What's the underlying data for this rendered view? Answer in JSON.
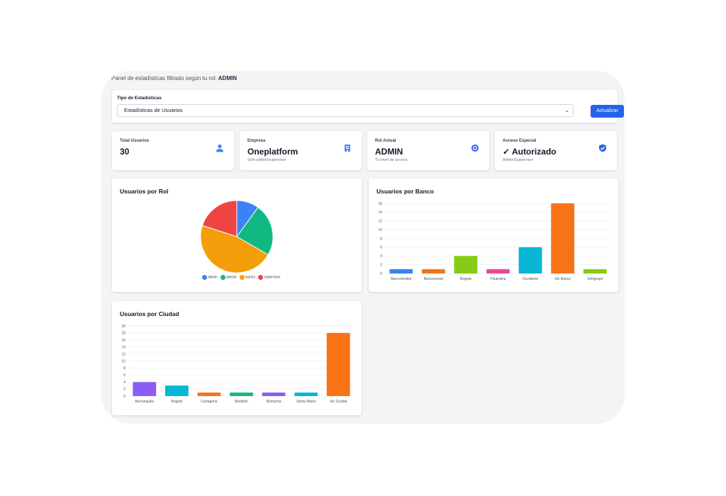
{
  "header": {
    "note_prefix": "Panel de estadísticas filtrado según tu rol:",
    "role": "ADMIN"
  },
  "filter": {
    "label": "Tipo de Estadísticas",
    "selected": "Estadísticas de Usuarios",
    "button": "Actualizar"
  },
  "stats": [
    {
      "title": "Total Usuarios",
      "value": "30",
      "sub": "",
      "icon": "user-icon"
    },
    {
      "title": "Empresa",
      "value": "Oneplatform",
      "sub": "Solo admin/supervisor",
      "icon": "building-icon"
    },
    {
      "title": "Rol Actual",
      "value": "ADMIN",
      "sub": "Tu nivel de acceso",
      "icon": "role-icon"
    },
    {
      "title": "Acceso Especial",
      "value": "✓ Autorizado",
      "sub": "Admin/Supervisor",
      "icon": "shield-check-icon"
    }
  ],
  "colors": {
    "accent": "#2563eb",
    "background": "#f3f4f6"
  },
  "chart_data": [
    {
      "type": "pie",
      "title": "Usuarios por Rol",
      "labels": [
        "admin",
        "asesor",
        "banco",
        "supervisor"
      ],
      "values": [
        3,
        7,
        14,
        6
      ],
      "colors": [
        "#3b82f6",
        "#10b981",
        "#f59e0b",
        "#ef4444"
      ]
    },
    {
      "type": "bar",
      "title": "Usuarios por Banco",
      "categories": [
        "Bancolombia",
        "Bancovivant",
        "Bogotá",
        "Finandina",
        "Occidente",
        "Sin Banco",
        "Vehigrupo"
      ],
      "values": [
        1,
        1,
        4,
        1,
        6,
        16,
        1
      ],
      "colors": [
        "#3b82f6",
        "#f97316",
        "#84cc16",
        "#ec4899",
        "#06b6d4",
        "#f97316",
        "#84cc16"
      ],
      "ylim": [
        0,
        16
      ],
      "yticks": [
        0,
        2,
        4,
        6,
        8,
        10,
        12,
        14,
        16
      ]
    },
    {
      "type": "bar",
      "title": "Usuarios por Ciudad",
      "categories": [
        "Barranquilla",
        "Bogotá",
        "Cartagena",
        "Medellín",
        "Riohacha",
        "Santa Marta",
        "Sin Ciudad"
      ],
      "values": [
        4,
        3,
        1,
        1,
        1,
        1,
        18
      ],
      "colors": [
        "#8b5cf6",
        "#06b6d4",
        "#f97316",
        "#10b981",
        "#8b5cf6",
        "#06b6d4",
        "#f97316"
      ],
      "ylim": [
        0,
        20
      ],
      "yticks": [
        0,
        2,
        4,
        6,
        8,
        10,
        12,
        14,
        16,
        18,
        20
      ]
    }
  ]
}
